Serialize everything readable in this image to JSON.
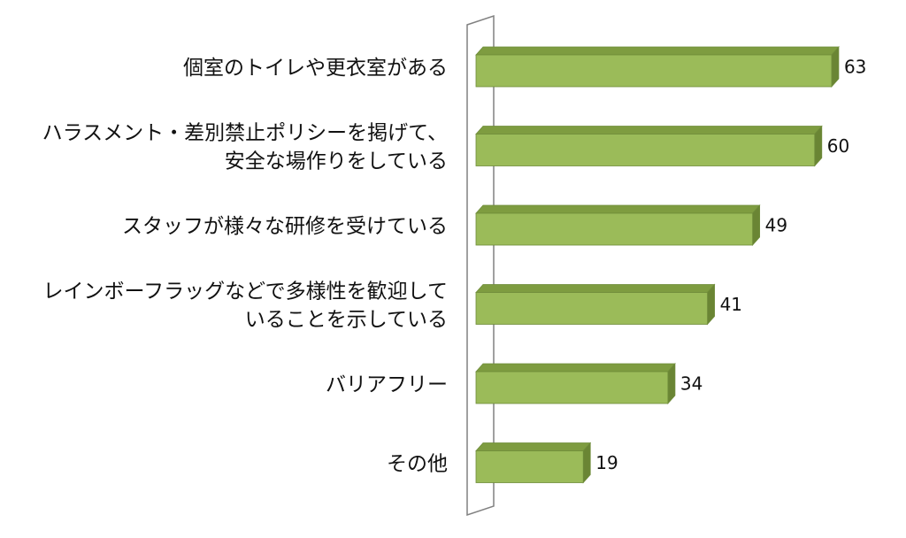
{
  "chart_data": {
    "type": "bar",
    "orientation": "horizontal",
    "style": "3d",
    "categories": [
      "個室のトイレや更衣室がある",
      "ハラスメント・差別禁止ポリシーを掲げて、\n安全な場作りをしている",
      "スタッフが様々な研修を受けている",
      "レインボーフラッグなどで多様性を歓迎して\nいることを示している",
      "バリアフリー",
      "その他"
    ],
    "values": [
      63,
      60,
      49,
      41,
      34,
      19
    ],
    "xlim": [
      0,
      66
    ],
    "grid": false,
    "legend": "none",
    "colors": {
      "bar_front": "#9bbb59",
      "bar_top": "#7e9c40",
      "bar_side": "#6a8534",
      "bar_edge": "#6f8c3a",
      "wall": "#808080"
    }
  }
}
